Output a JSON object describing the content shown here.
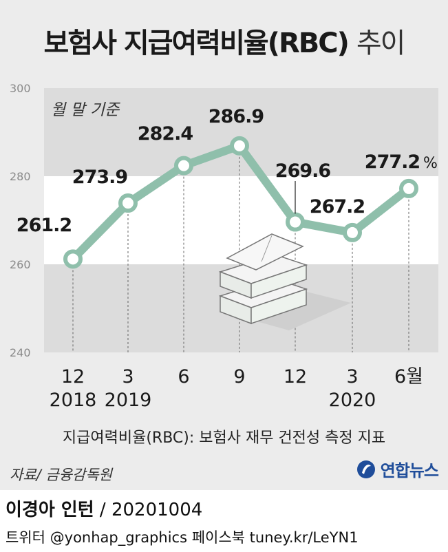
{
  "title": {
    "main": "보험사 지급여력비율(RBC)",
    "suffix": "추이"
  },
  "note": "월 말 기준",
  "definition": "지급여력비율(RBC): 보험사 재무 건전성 측정 지표",
  "source": "자료/ 금융감독원",
  "agency": "연합뉴스",
  "credit": {
    "author": "이경아 인턴",
    "separator": "/",
    "date": "20201004"
  },
  "social": "트위터 @yonhap_graphics  페이스북 tuney.kr/LeYN1",
  "colors": {
    "line": "#8fbfab",
    "marker_fill": "#ffffff",
    "band_dark": "#dcdcdc",
    "band_light": "#ececec",
    "agency": "#1f4d9a"
  },
  "chart_data": {
    "type": "line",
    "categories": [
      "12\n2018",
      "3\n2019",
      "6",
      "9",
      "12",
      "3\n2020",
      "6월"
    ],
    "x_labels_top": [
      "12",
      "3",
      "6",
      "9",
      "12",
      "3",
      "6월"
    ],
    "x_labels_bottom": [
      "2018",
      "2019",
      "",
      "",
      "",
      "2020",
      ""
    ],
    "values": [
      261.2,
      273.9,
      282.4,
      286.9,
      269.6,
      267.2,
      277.2
    ],
    "value_labels": [
      "261.2",
      "273.9",
      "282.4",
      "286.9",
      "269.6",
      "267.2",
      "277.2"
    ],
    "unit": "%",
    "ylim": [
      240,
      300
    ],
    "yticks": [
      240,
      260,
      280,
      300
    ],
    "title": "보험사 지급여력비율(RBC) 추이",
    "grid": "horizontal bands"
  }
}
